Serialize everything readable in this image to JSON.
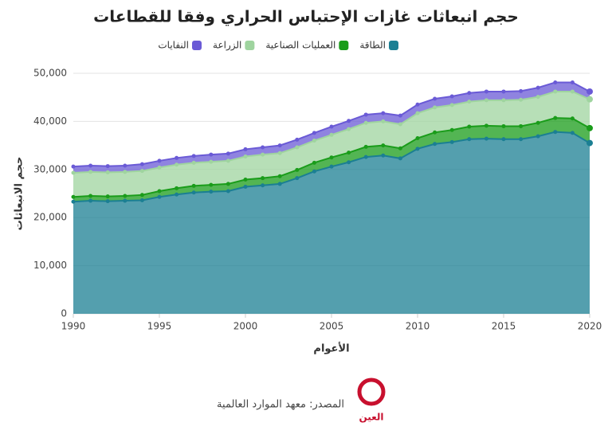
{
  "chart_data": {
    "type": "stacked-area",
    "title": "حجم انبعاثات غازات الإحتباس الحراري وفقا للقطاعات",
    "x_label": "الأعوام",
    "y_label": "حجم الانبعاثات",
    "x": [
      1990,
      1991,
      1992,
      1993,
      1994,
      1995,
      1996,
      1997,
      1998,
      1999,
      2000,
      2001,
      2002,
      2003,
      2004,
      2005,
      2006,
      2007,
      2008,
      2009,
      2010,
      2011,
      2012,
      2013,
      2014,
      2015,
      2016,
      2017,
      2018,
      2019,
      2020
    ],
    "series": [
      {
        "name": "الطاقة",
        "color": "#1b7f93",
        "values": [
          23300,
          23500,
          23400,
          23500,
          23600,
          24300,
          24800,
          25200,
          25400,
          25500,
          26400,
          26700,
          27000,
          28200,
          29600,
          30600,
          31500,
          32600,
          32900,
          32300,
          34300,
          35300,
          35700,
          36300,
          36400,
          36300,
          36300,
          36900,
          37800,
          37600,
          35500
        ]
      },
      {
        "name": "العمليات الصناعية",
        "color": "#1a9c1a",
        "values": [
          1000,
          1000,
          1000,
          1000,
          1100,
          1200,
          1300,
          1400,
          1400,
          1500,
          1500,
          1500,
          1600,
          1700,
          1800,
          1900,
          2000,
          2100,
          2100,
          2100,
          2200,
          2400,
          2500,
          2600,
          2700,
          2700,
          2700,
          2800,
          2900,
          3000,
          3100
        ]
      },
      {
        "name": "الزراعة",
        "color": "#9fd49f",
        "values": [
          5000,
          5000,
          5000,
          5000,
          5000,
          4900,
          4900,
          4800,
          4800,
          4800,
          4800,
          4900,
          4800,
          4700,
          4600,
          4700,
          4900,
          5000,
          5000,
          5000,
          5200,
          5200,
          5200,
          5200,
          5300,
          5400,
          5500,
          5400,
          5500,
          5600,
          6000
        ]
      },
      {
        "name": "النفايات",
        "color": "#6a5ad6",
        "values": [
          1300,
          1300,
          1300,
          1300,
          1400,
          1400,
          1400,
          1400,
          1500,
          1500,
          1500,
          1500,
          1600,
          1600,
          1600,
          1700,
          1700,
          1700,
          1700,
          1800,
          1800,
          1800,
          1800,
          1800,
          1800,
          1800,
          1800,
          1900,
          1900,
          1900,
          1600
        ]
      }
    ],
    "xlim": [
      1990,
      2020
    ],
    "xticks": [
      1990,
      1995,
      2000,
      2005,
      2010,
      2015,
      2020
    ],
    "ylim": [
      0,
      50000
    ],
    "yticks": [
      0,
      {
        "value": 10000,
        "label": "10,000"
      },
      {
        "value": 20000,
        "label": "20,000"
      },
      {
        "value": 30000,
        "label": "30,000"
      },
      {
        "value": 40000,
        "label": "40,000"
      },
      {
        "value": 50000,
        "label": "50,000"
      }
    ],
    "grid": true,
    "source": "المصدر: معهد الموارد العالمية",
    "logo": "العين"
  }
}
